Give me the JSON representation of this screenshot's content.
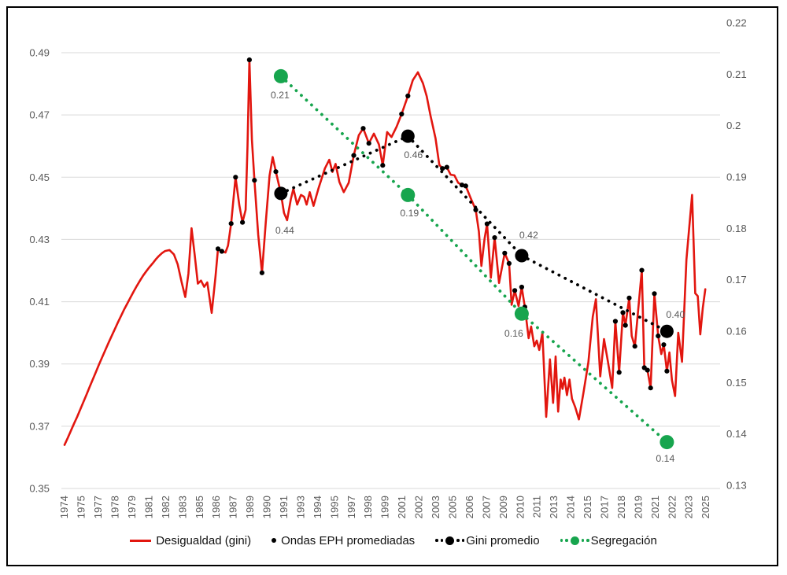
{
  "chart_data": {
    "type": "line",
    "title": "",
    "x_axis": {
      "range_years": [
        1974,
        2025
      ],
      "tick_labels": [
        "1974",
        "1975",
        "1977",
        "1978",
        "1979",
        "1981",
        "1982",
        "1983",
        "1985",
        "1986",
        "1987",
        "1989",
        "1990",
        "1991",
        "1993",
        "1994",
        "1995",
        "1997",
        "1998",
        "1999",
        "2001",
        "2002",
        "2003",
        "2005",
        "2006",
        "2007",
        "2009",
        "2010",
        "2011",
        "2013",
        "2014",
        "2015",
        "2017",
        "2018",
        "2019",
        "2021",
        "2022",
        "2023",
        "2025"
      ]
    },
    "left_axis": {
      "min": 0.35,
      "max": 0.49,
      "tick_values": [
        0.49,
        0.47,
        0.45,
        0.43,
        0.41,
        0.39,
        0.37,
        0.35
      ],
      "tick_labels": [
        "0.49",
        "0.47",
        "0.45",
        "0.43",
        "0.41",
        "0.39",
        "0.37",
        "0.35"
      ]
    },
    "right_axis": {
      "min": 0.13,
      "max": 0.22,
      "tick_values": [
        0.22,
        0.21,
        0.2,
        0.19,
        0.18,
        0.17,
        0.16,
        0.15,
        0.14,
        0.13
      ],
      "tick_labels": [
        "0.22",
        "0.21",
        "0.2",
        "0.19",
        "0.18",
        "0.17",
        "0.16",
        "0.15",
        "0.14",
        "0.13"
      ]
    },
    "series": {
      "desigualdad": {
        "name": "Desigualdad (gini)",
        "color": "#e2160f",
        "axis": "left",
        "type": "line",
        "points": [
          [
            1974.0,
            0.364
          ],
          [
            1974.25,
            0.3662
          ],
          [
            1974.5,
            0.3685
          ],
          [
            1974.75,
            0.3708
          ],
          [
            1975.0,
            0.373
          ],
          [
            1975.25,
            0.3754
          ],
          [
            1975.5,
            0.3778
          ],
          [
            1975.75,
            0.3802
          ],
          [
            1976.0,
            0.3827
          ],
          [
            1976.25,
            0.3851
          ],
          [
            1976.5,
            0.3875
          ],
          [
            1976.75,
            0.3899
          ],
          [
            1977.0,
            0.3922
          ],
          [
            1977.25,
            0.3945
          ],
          [
            1977.5,
            0.3968
          ],
          [
            1977.75,
            0.399
          ],
          [
            1978.0,
            0.4012
          ],
          [
            1978.25,
            0.4034
          ],
          [
            1978.5,
            0.4055
          ],
          [
            1978.75,
            0.4076
          ],
          [
            1979.0,
            0.4095
          ],
          [
            1979.25,
            0.4114
          ],
          [
            1979.5,
            0.4133
          ],
          [
            1979.75,
            0.4151
          ],
          [
            1980.0,
            0.4168
          ],
          [
            1980.25,
            0.4184
          ],
          [
            1980.5,
            0.4198
          ],
          [
            1980.75,
            0.4211
          ],
          [
            1981.0,
            0.4223
          ],
          [
            1981.25,
            0.4236
          ],
          [
            1981.5,
            0.4247
          ],
          [
            1981.75,
            0.4256
          ],
          [
            1982.0,
            0.4263
          ],
          [
            1982.35,
            0.4266
          ],
          [
            1982.7,
            0.4252
          ],
          [
            1983.0,
            0.422
          ],
          [
            1983.3,
            0.4165
          ],
          [
            1983.6,
            0.4115
          ],
          [
            1983.85,
            0.419
          ],
          [
            1984.1,
            0.4336
          ],
          [
            1984.35,
            0.425
          ],
          [
            1984.6,
            0.4158
          ],
          [
            1984.85,
            0.4168
          ],
          [
            1985.1,
            0.4148
          ],
          [
            1985.35,
            0.4162
          ],
          [
            1985.7,
            0.4064
          ],
          [
            1986.0,
            0.418
          ],
          [
            1986.2,
            0.427
          ],
          [
            1986.5,
            0.4262
          ],
          [
            1986.8,
            0.4258
          ],
          [
            1987.0,
            0.428
          ],
          [
            1987.25,
            0.4351
          ],
          [
            1987.6,
            0.45
          ],
          [
            1987.9,
            0.441
          ],
          [
            1988.15,
            0.4355
          ],
          [
            1988.4,
            0.4395
          ],
          [
            1988.55,
            0.46
          ],
          [
            1988.7,
            0.4877
          ],
          [
            1988.9,
            0.462
          ],
          [
            1989.1,
            0.449
          ],
          [
            1989.4,
            0.4315
          ],
          [
            1989.7,
            0.4193
          ],
          [
            1990.0,
            0.4355
          ],
          [
            1990.3,
            0.4505
          ],
          [
            1990.55,
            0.4565
          ],
          [
            1990.8,
            0.4518
          ],
          [
            1991.2,
            0.4448
          ],
          [
            1991.45,
            0.4385
          ],
          [
            1991.7,
            0.4362
          ],
          [
            1992.0,
            0.443
          ],
          [
            1992.2,
            0.4463
          ],
          [
            1992.5,
            0.4412
          ],
          [
            1992.8,
            0.4443
          ],
          [
            1993.05,
            0.4437
          ],
          [
            1993.25,
            0.4412
          ],
          [
            1993.5,
            0.4452
          ],
          [
            1993.8,
            0.4408
          ],
          [
            1994.2,
            0.4465
          ],
          [
            1994.7,
            0.4528
          ],
          [
            1995.05,
            0.4556
          ],
          [
            1995.3,
            0.4517
          ],
          [
            1995.55,
            0.4543
          ],
          [
            1995.85,
            0.4485
          ],
          [
            1996.2,
            0.4452
          ],
          [
            1996.6,
            0.4482
          ],
          [
            1997.0,
            0.457
          ],
          [
            1997.4,
            0.4635
          ],
          [
            1997.75,
            0.4657
          ],
          [
            1998.2,
            0.4609
          ],
          [
            1998.6,
            0.464
          ],
          [
            1999.0,
            0.4605
          ],
          [
            1999.3,
            0.4538
          ],
          [
            1999.65,
            0.4645
          ],
          [
            2000.0,
            0.4629
          ],
          [
            2000.4,
            0.4662
          ],
          [
            2000.8,
            0.4703
          ],
          [
            2001.3,
            0.4761
          ],
          [
            2001.7,
            0.4812
          ],
          [
            2002.1,
            0.4837
          ],
          [
            2002.5,
            0.4802
          ],
          [
            2002.8,
            0.476
          ],
          [
            2003.1,
            0.4698
          ],
          [
            2003.5,
            0.4625
          ],
          [
            2003.8,
            0.454
          ],
          [
            2004.05,
            0.4528
          ],
          [
            2004.4,
            0.4532
          ],
          [
            2004.7,
            0.4508
          ],
          [
            2005.0,
            0.4506
          ],
          [
            2005.3,
            0.4482
          ],
          [
            2005.6,
            0.4475
          ],
          [
            2005.9,
            0.4472
          ],
          [
            2006.3,
            0.4432
          ],
          [
            2006.7,
            0.4395
          ],
          [
            2006.95,
            0.4325
          ],
          [
            2007.15,
            0.4215
          ],
          [
            2007.4,
            0.4302
          ],
          [
            2007.6,
            0.435
          ],
          [
            2007.9,
            0.4177
          ],
          [
            2008.2,
            0.4306
          ],
          [
            2008.55,
            0.416
          ],
          [
            2009.0,
            0.4256
          ],
          [
            2009.35,
            0.4223
          ],
          [
            2009.55,
            0.409
          ],
          [
            2009.8,
            0.4136
          ],
          [
            2010.1,
            0.4086
          ],
          [
            2010.35,
            0.4147
          ],
          [
            2010.6,
            0.4083
          ],
          [
            2010.9,
            0.3983
          ],
          [
            2011.1,
            0.402
          ],
          [
            2011.35,
            0.3957
          ],
          [
            2011.55,
            0.3975
          ],
          [
            2011.75,
            0.3945
          ],
          [
            2012.0,
            0.4
          ],
          [
            2012.3,
            0.373
          ],
          [
            2012.6,
            0.3915
          ],
          [
            2012.85,
            0.3775
          ],
          [
            2013.05,
            0.3924
          ],
          [
            2013.25,
            0.3747
          ],
          [
            2013.45,
            0.385
          ],
          [
            2013.6,
            0.382
          ],
          [
            2013.75,
            0.3856
          ],
          [
            2013.95,
            0.38
          ],
          [
            2014.15,
            0.385
          ],
          [
            2014.35,
            0.3788
          ],
          [
            2014.6,
            0.3762
          ],
          [
            2014.9,
            0.3722
          ],
          [
            2015.25,
            0.3805
          ],
          [
            2015.65,
            0.3905
          ],
          [
            2016.0,
            0.4052
          ],
          [
            2016.25,
            0.4108
          ],
          [
            2016.6,
            0.386
          ],
          [
            2016.9,
            0.398
          ],
          [
            2017.2,
            0.391
          ],
          [
            2017.55,
            0.3823
          ],
          [
            2017.8,
            0.4037
          ],
          [
            2018.1,
            0.3873
          ],
          [
            2018.4,
            0.4065
          ],
          [
            2018.6,
            0.4024
          ],
          [
            2018.9,
            0.4112
          ],
          [
            2019.1,
            0.399
          ],
          [
            2019.35,
            0.3957
          ],
          [
            2019.9,
            0.4201
          ],
          [
            2020.1,
            0.3888
          ],
          [
            2020.35,
            0.388
          ],
          [
            2020.6,
            0.3823
          ],
          [
            2020.9,
            0.4126
          ],
          [
            2021.2,
            0.399
          ],
          [
            2021.45,
            0.3932
          ],
          [
            2021.65,
            0.3962
          ],
          [
            2021.9,
            0.3877
          ],
          [
            2022.1,
            0.3937
          ],
          [
            2022.3,
            0.3848
          ],
          [
            2022.55,
            0.3797
          ],
          [
            2022.8,
            0.4
          ],
          [
            2023.1,
            0.3907
          ],
          [
            2023.45,
            0.4235
          ],
          [
            2023.9,
            0.4443
          ],
          [
            2024.15,
            0.4127
          ],
          [
            2024.35,
            0.4118
          ],
          [
            2024.55,
            0.3995
          ],
          [
            2024.75,
            0.408
          ],
          [
            2024.95,
            0.414
          ]
        ]
      },
      "ondas_eph": {
        "name": "Ondas EPH promediadas",
        "color": "#000000",
        "axis": "left",
        "type": "scatter",
        "points": [
          [
            1986.2,
            0.427
          ],
          [
            1986.5,
            0.4262
          ],
          [
            1987.25,
            0.4351
          ],
          [
            1987.6,
            0.45
          ],
          [
            1988.15,
            0.4355
          ],
          [
            1988.7,
            0.4877
          ],
          [
            1989.1,
            0.449
          ],
          [
            1989.7,
            0.4193
          ],
          [
            1990.8,
            0.4518
          ],
          [
            1997.0,
            0.457
          ],
          [
            1997.75,
            0.4657
          ],
          [
            1998.2,
            0.4609
          ],
          [
            1999.3,
            0.4538
          ],
          [
            2000.8,
            0.4703
          ],
          [
            2001.3,
            0.4761
          ],
          [
            2004.05,
            0.4528
          ],
          [
            2004.4,
            0.4532
          ],
          [
            2005.6,
            0.4475
          ],
          [
            2005.9,
            0.4472
          ],
          [
            2006.7,
            0.4395
          ],
          [
            2007.6,
            0.435
          ],
          [
            2008.2,
            0.4306
          ],
          [
            2009.0,
            0.4256
          ],
          [
            2009.35,
            0.4223
          ],
          [
            2009.8,
            0.4136
          ],
          [
            2010.35,
            0.4147
          ],
          [
            2010.6,
            0.4083
          ],
          [
            2017.8,
            0.4037
          ],
          [
            2018.1,
            0.3873
          ],
          [
            2018.4,
            0.4065
          ],
          [
            2018.6,
            0.4024
          ],
          [
            2018.9,
            0.4112
          ],
          [
            2019.35,
            0.3957
          ],
          [
            2019.9,
            0.4201
          ],
          [
            2020.1,
            0.3888
          ],
          [
            2020.35,
            0.388
          ],
          [
            2020.6,
            0.3823
          ],
          [
            2020.9,
            0.4126
          ],
          [
            2021.2,
            0.399
          ],
          [
            2021.65,
            0.3962
          ],
          [
            2021.9,
            0.3877
          ]
        ]
      },
      "gini_promedio": {
        "name": "Gini promedio",
        "color": "#000000",
        "axis": "left",
        "type": "dotted-line-markers",
        "points": [
          [
            1991.2,
            0.4448
          ],
          [
            2001.3,
            0.4632
          ],
          [
            2010.35,
            0.4248
          ],
          [
            2021.9,
            0.4005
          ]
        ],
        "point_labels": [
          "0.44",
          "0.46",
          "0.42",
          "0.40"
        ],
        "label_offsets": [
          [
            5,
            47
          ],
          [
            7,
            24
          ],
          [
            9,
            -26
          ],
          [
            11,
            -21
          ]
        ]
      },
      "segregacion": {
        "name": "Segregación",
        "color": "#17a54e",
        "axis": "right",
        "type": "dotted-line-markers",
        "points": [
          [
            1991.2,
            0.2096
          ],
          [
            2001.3,
            0.1865
          ],
          [
            2010.35,
            0.1634
          ],
          [
            2021.9,
            0.1384
          ]
        ],
        "point_labels": [
          "0.21",
          "0.19",
          "0.16",
          "0.14"
        ],
        "label_offsets": [
          [
            -1,
            24
          ],
          [
            2,
            23
          ],
          [
            -10,
            25
          ],
          [
            -2,
            21
          ]
        ]
      }
    },
    "legend": [
      {
        "label": "Desigualdad (gini)",
        "marker": "red-line"
      },
      {
        "label": "Ondas EPH promediadas",
        "marker": "black-dot"
      },
      {
        "label": "Gini promedio",
        "marker": "black-dotted-big-dot"
      },
      {
        "label": "Segregación",
        "marker": "green-dotted-big-dot"
      }
    ],
    "colors": {
      "line_red": "#e2160f",
      "green": "#17a54e",
      "black": "#000000",
      "grid": "#d9d9d9",
      "tick_text": "#595959",
      "data_label_text": "#595959"
    },
    "legend_position": "bottom",
    "grid": "horizontal-only"
  }
}
